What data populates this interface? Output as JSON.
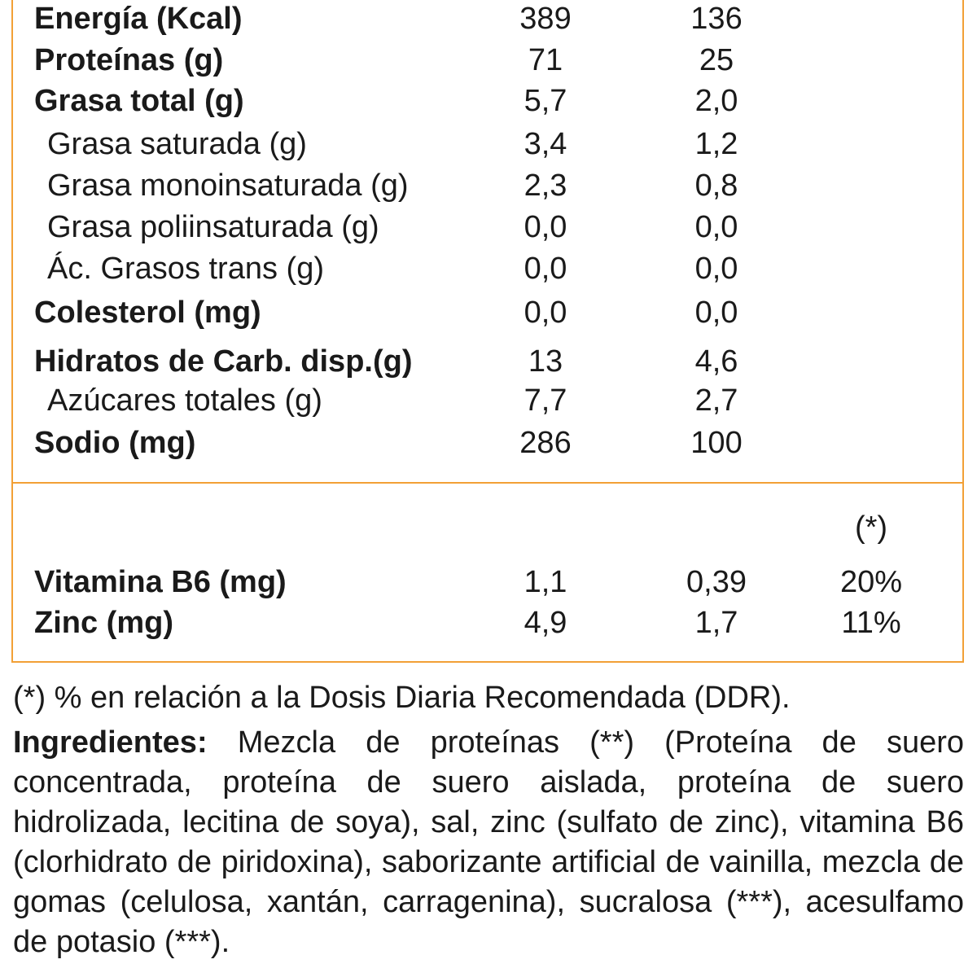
{
  "nutrients": [
    {
      "name": "Energía (Kcal)",
      "v1": "389",
      "v2": "136",
      "bold": true
    },
    {
      "name": "Proteínas (g)",
      "v1": "71",
      "v2": "25",
      "bold": true
    },
    {
      "name": "Grasa total (g)",
      "v1": "5,7",
      "v2": "2,0",
      "bold": true
    },
    {
      "name": "Grasa saturada (g)",
      "v1": "3,4",
      "v2": "1,2",
      "bold": false
    },
    {
      "name": "Grasa monoinsaturada (g)",
      "v1": "2,3",
      "v2": "0,8",
      "bold": false
    },
    {
      "name": "Grasa poliinsaturada (g)",
      "v1": "0,0",
      "v2": "0,0",
      "bold": false
    },
    {
      "name": "Ác. Grasos trans (g)",
      "v1": "0,0",
      "v2": "0,0",
      "bold": false
    },
    {
      "name": "Colesterol (mg)",
      "v1": "0,0",
      "v2": "0,0",
      "bold": true
    },
    {
      "name": "Hidratos de Carb. disp.(g)",
      "v1": "13",
      "v2": "4,6",
      "bold": true
    },
    {
      "name": "Azúcares totales (g)",
      "v1": "7,7",
      "v2": "2,7",
      "bold": false
    },
    {
      "name": "Sodio (mg)",
      "v1": "286",
      "v2": "100",
      "bold": true
    }
  ],
  "vitamins_header": {
    "pct": "(*)"
  },
  "vitamins": [
    {
      "name": "Vitamina B6 (mg)",
      "v1": "1,1",
      "v2": "0,39",
      "pct": "20%"
    },
    {
      "name": "Zinc (mg)",
      "v1": "4,9",
      "v2": "1,7",
      "pct": "11%"
    }
  ],
  "footnote": "(*) % en relación a la Dosis Diaria Recomendada (DDR).",
  "ingredients": {
    "label": "Ingredientes:",
    "text": "Mezcla de proteínas (**) (Proteína de suero concentrada, proteína de suero aislada, proteína de suero hidrolizada, lecitina de soya), sal, zinc (sulfato de zinc), vitamina B6 (clorhidrato de piridoxina), saborizante artificial de vainilla, mezcla de gomas (celulosa, xantán, carragenina), sucralosa (***), acesulfamo de potasio (***)."
  },
  "colors": {
    "border": "#f2a036",
    "text": "#1a1a1a"
  }
}
